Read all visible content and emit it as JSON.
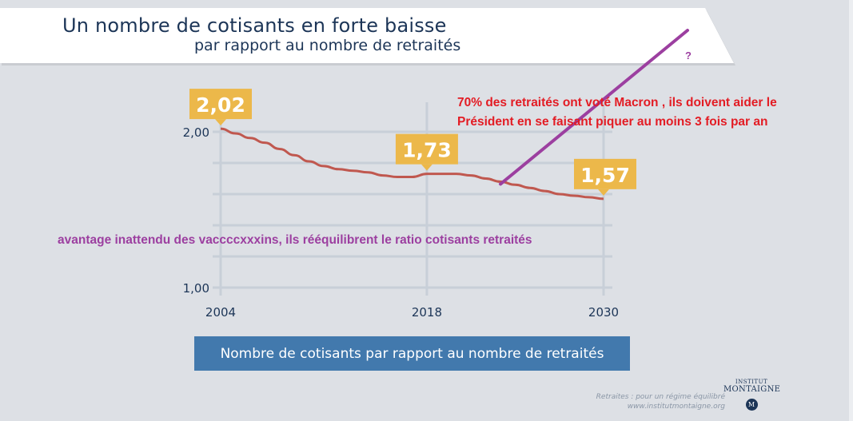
{
  "header": {
    "title": "Un nombre de cotisants en forte baisse",
    "subtitle": "par rapport au nombre de retraités"
  },
  "annotations": {
    "red_text": "70% des retraités ont voté Macron , ils doivent aider le Président  en se faisant piquer au moins  3 fois par an",
    "purple_text": "avantage inattendu des vaccccxxxins, ils rééquilibrent le ratio cotisants retraités",
    "question_mark": "?"
  },
  "legend": {
    "label": "Nombre de cotisants par rapport au nombre de retraités"
  },
  "footer": {
    "source_line1": "Retraites : pour un régime équilibré",
    "source_line2": "www.institutmontaigne.org",
    "logo_top": "INSTITUT",
    "logo_main": "MONTAIGNE",
    "logo_badge": "M"
  },
  "colors": {
    "background": "#dde0e5",
    "line": "#c0584f",
    "callout": "#ecb84a",
    "legend_bg": "#4279ad",
    "annotation_red": "#e31c24",
    "annotation_purple": "#9c3fa0",
    "text_dark": "#1c3557",
    "grid": "#c8cfd8"
  },
  "chart_data": {
    "type": "line",
    "title": "Un nombre de cotisants en forte baisse par rapport au nombre de retraités",
    "xlabel": "",
    "ylabel": "",
    "xlim": [
      2004,
      2030
    ],
    "ylim": [
      1.0,
      2.0
    ],
    "grid": true,
    "x_ticks": [
      2004,
      2018,
      2030
    ],
    "x_tick_labels": [
      "2004",
      "2018",
      "2030"
    ],
    "y_ticks": [
      1.0,
      2.0
    ],
    "y_tick_labels": [
      "1,00",
      "2,00"
    ],
    "y_gridlines": [
      1.0,
      1.2,
      1.4,
      1.6,
      1.8,
      2.0
    ],
    "legend": "bottom",
    "series": [
      {
        "name": "Nombre de cotisants par rapport au nombre de retraités",
        "x": [
          2004,
          2005,
          2006,
          2007,
          2008,
          2009,
          2010,
          2011,
          2012,
          2013,
          2014,
          2015,
          2016,
          2017,
          2018,
          2019,
          2020,
          2021,
          2022,
          2023,
          2024,
          2025,
          2026,
          2027,
          2028,
          2029,
          2030
        ],
        "values": [
          2.02,
          1.99,
          1.96,
          1.93,
          1.89,
          1.85,
          1.81,
          1.78,
          1.76,
          1.75,
          1.74,
          1.72,
          1.71,
          1.71,
          1.73,
          1.73,
          1.73,
          1.72,
          1.7,
          1.68,
          1.66,
          1.64,
          1.62,
          1.6,
          1.59,
          1.58,
          1.57
        ]
      }
    ],
    "callouts": [
      {
        "x": 2004,
        "value": 2.02,
        "label": "2,02"
      },
      {
        "x": 2018,
        "value": 1.73,
        "label": "1,73"
      },
      {
        "x": 2030,
        "value": 1.57,
        "label": "1,57"
      }
    ],
    "overlay_line": {
      "description": "hand-drawn purple line rising from the curve toward the top-right '?'",
      "start": {
        "x": 2023,
        "value": 1.68
      }
    }
  }
}
